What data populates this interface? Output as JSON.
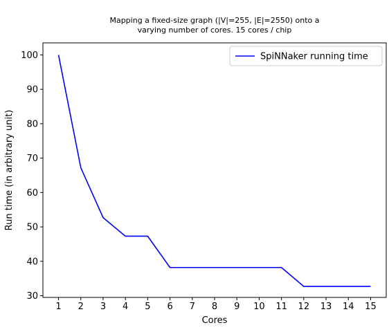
{
  "chart_data": {
    "type": "line",
    "title": "Mapping a fixed-size graph (|V|=255, |E|=2550) onto a\nvarying number of cores. 15 cores / chip",
    "xlabel": "Cores",
    "ylabel": "Run time (in arbitrary unit)",
    "x": [
      1,
      2,
      3,
      4,
      5,
      6,
      7,
      8,
      9,
      10,
      11,
      12,
      13,
      14,
      15
    ],
    "xlim": [
      0.3,
      15.7
    ],
    "ylim": [
      29.5,
      103.5
    ],
    "xticks": [
      1,
      2,
      3,
      4,
      5,
      6,
      7,
      8,
      9,
      10,
      11,
      12,
      13,
      14,
      15
    ],
    "yticks": [
      30,
      40,
      50,
      60,
      70,
      80,
      90,
      100
    ],
    "grid": false,
    "legend_position": "top-right",
    "series": [
      {
        "name": "SpiNNaker running time",
        "color": "#0000ff",
        "values": [
          100,
          67.2,
          52.7,
          47.3,
          47.3,
          38.2,
          38.2,
          38.2,
          38.2,
          38.2,
          38.2,
          32.7,
          32.7,
          32.7,
          32.7
        ]
      }
    ]
  }
}
